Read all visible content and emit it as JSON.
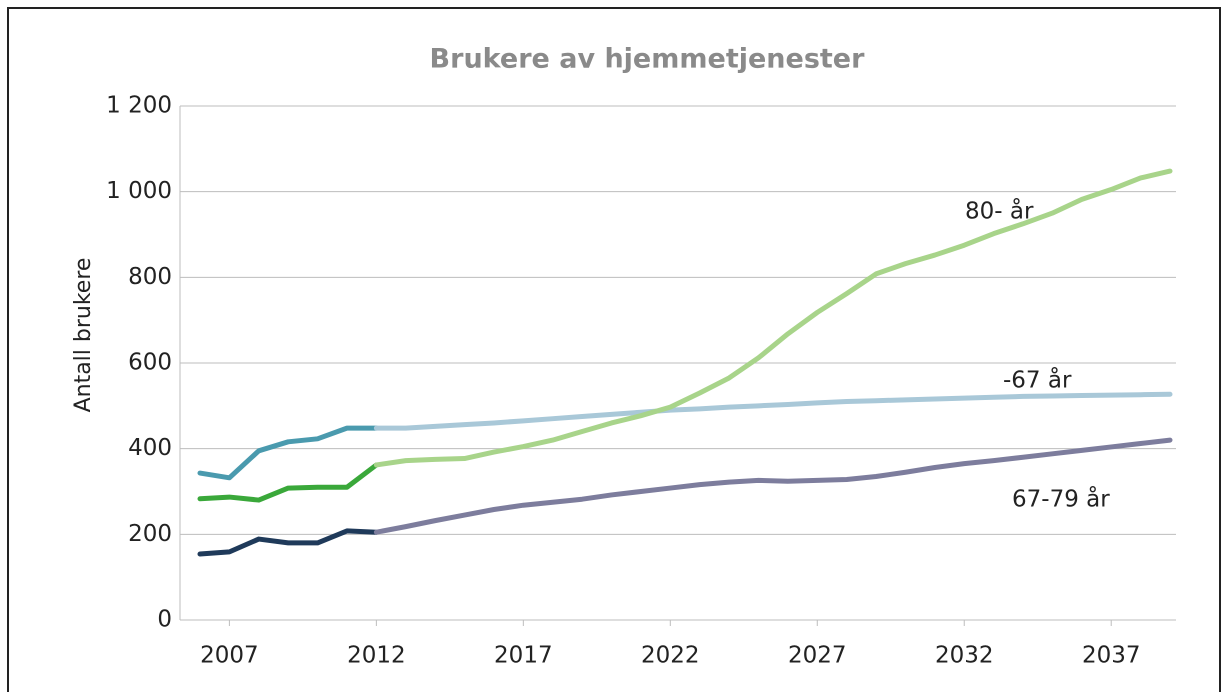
{
  "chart_data": {
    "type": "line",
    "title": "Brukere av hjemmetjenester",
    "y_label": "Antall brukere",
    "x": [
      2006,
      2007,
      2008,
      2009,
      2010,
      2011,
      2012,
      2013,
      2014,
      2015,
      2016,
      2017,
      2018,
      2019,
      2020,
      2021,
      2022,
      2023,
      2024,
      2025,
      2026,
      2027,
      2028,
      2029,
      2030,
      2031,
      2032,
      2033,
      2034,
      2035,
      2036,
      2037,
      2038,
      2039
    ],
    "xlim": [
      2006,
      2039
    ],
    "xticks": [
      2007,
      2012,
      2017,
      2022,
      2027,
      2032,
      2037
    ],
    "ylim": [
      0,
      1200
    ],
    "yticks": [
      0,
      200,
      400,
      600,
      800,
      {
        "value": 1000,
        "label": "1 000"
      },
      {
        "value": 1200,
        "label": "1 200"
      }
    ],
    "grid": true,
    "series": [
      {
        "color": "#4a9aae",
        "values": [
          343,
          332,
          395,
          416,
          423,
          448,
          448,
          null,
          null,
          null,
          null,
          null,
          null,
          null,
          null,
          null,
          null,
          null,
          null,
          null,
          null,
          null,
          null,
          null,
          null,
          null,
          null,
          null,
          null,
          null,
          null,
          null,
          null,
          null
        ]
      },
      {
        "name": "-67 år",
        "color": "#a9c8d8",
        "values": [
          null,
          null,
          null,
          null,
          null,
          null,
          448,
          448,
          452,
          456,
          460,
          465,
          470,
          475,
          480,
          485,
          490,
          493,
          497,
          500,
          503,
          507,
          510,
          512,
          514,
          516,
          518,
          520,
          522,
          523,
          524,
          525,
          526,
          527
        ]
      },
      {
        "color": "#3aa83a",
        "values": [
          283,
          287,
          280,
          308,
          310,
          310,
          362,
          null,
          null,
          null,
          null,
          null,
          null,
          null,
          null,
          null,
          null,
          null,
          null,
          null,
          null,
          null,
          null,
          null,
          null,
          null,
          null,
          null,
          null,
          null,
          null,
          null,
          null,
          null
        ]
      },
      {
        "name": "80- år",
        "color": "#a8d48a",
        "values": [
          null,
          null,
          null,
          null,
          null,
          null,
          362,
          372,
          375,
          377,
          392,
          405,
          420,
          440,
          460,
          477,
          497,
          530,
          565,
          612,
          668,
          718,
          762,
          808,
          832,
          852,
          875,
          902,
          925,
          950,
          982,
          1005,
          1032,
          1048
        ]
      },
      {
        "color": "#1f3a5a",
        "values": [
          154,
          159,
          189,
          180,
          180,
          208,
          205,
          null,
          null,
          null,
          null,
          null,
          null,
          null,
          null,
          null,
          null,
          null,
          null,
          null,
          null,
          null,
          null,
          null,
          null,
          null,
          null,
          null,
          null,
          null,
          null,
          null,
          null,
          null
        ]
      },
      {
        "name": "67-79 år",
        "color": "#7d7d9d",
        "values": [
          null,
          null,
          null,
          null,
          null,
          null,
          205,
          218,
          232,
          245,
          258,
          268,
          275,
          282,
          292,
          300,
          308,
          316,
          322,
          326,
          324,
          326,
          328,
          335,
          345,
          356,
          365,
          372,
          380,
          388,
          396,
          404,
          412,
          420
        ]
      }
    ]
  }
}
